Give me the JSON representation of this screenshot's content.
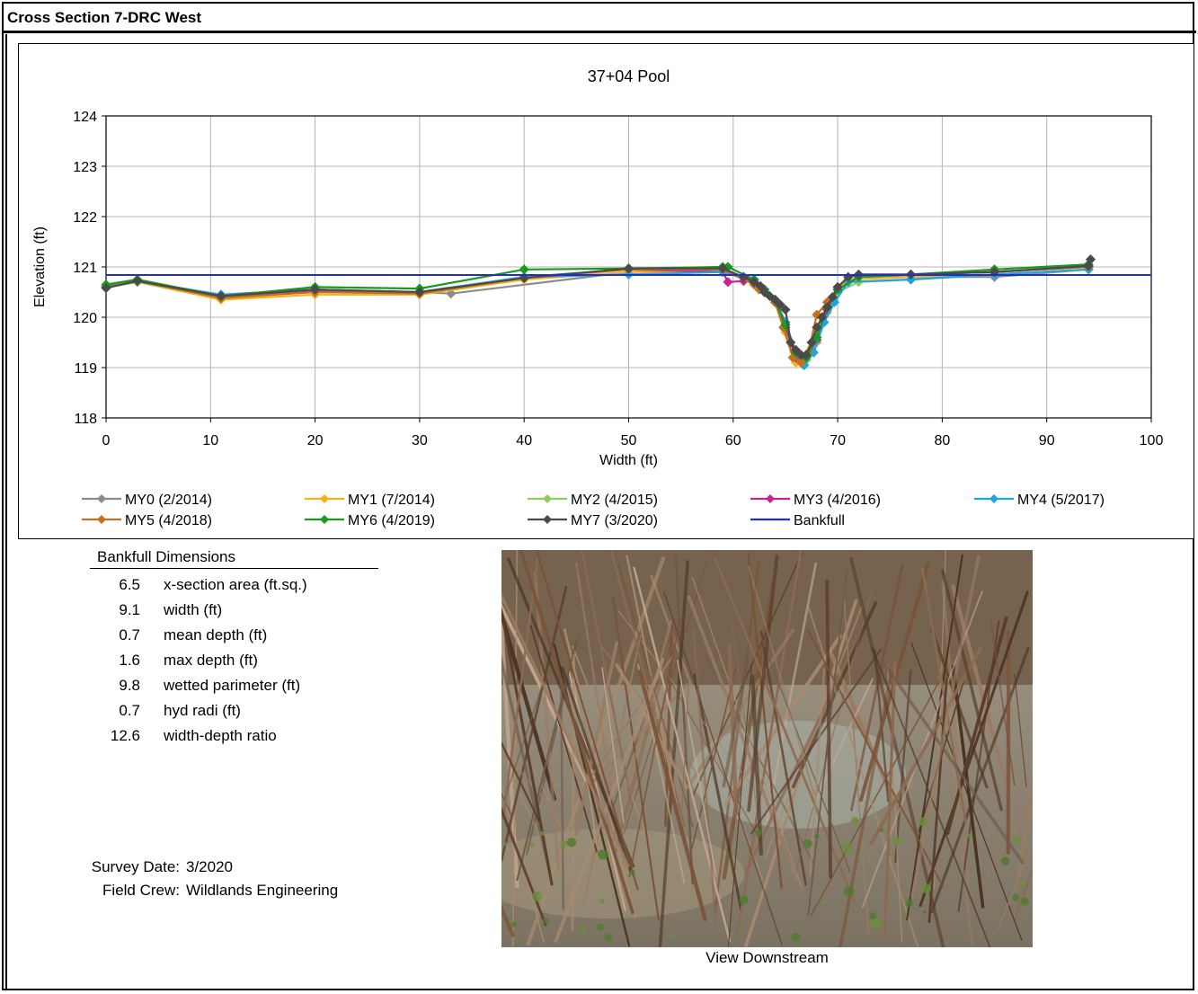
{
  "sheet_title": "Cross Section  7-DRC West",
  "chart_data": {
    "type": "line",
    "title": "37+04 Pool",
    "xlabel": "Width (ft)",
    "ylabel": "Elevation (ft)",
    "xlim": [
      0,
      100
    ],
    "ylim": [
      118,
      124
    ],
    "xticks": [
      0,
      10,
      20,
      30,
      40,
      50,
      60,
      70,
      80,
      90,
      100
    ],
    "yticks": [
      118,
      119,
      120,
      121,
      122,
      123,
      124
    ],
    "grid": true,
    "legend_position": "bottom",
    "bankfull": {
      "name": "Bankfull",
      "y": 120.84,
      "color": "#1f2ecc"
    },
    "series": [
      {
        "name": "MY0 (2/2014)",
        "color": "#8c8c8c",
        "points": [
          [
            0,
            120.6
          ],
          [
            3,
            120.7
          ],
          [
            11,
            120.45
          ],
          [
            20,
            120.55
          ],
          [
            30,
            120.5
          ],
          [
            33,
            120.47
          ],
          [
            50,
            120.9
          ],
          [
            59,
            120.95
          ],
          [
            62,
            120.7
          ],
          [
            63,
            120.55
          ],
          [
            64,
            120.35
          ],
          [
            65,
            119.9
          ],
          [
            66,
            119.3
          ],
          [
            67,
            119.25
          ],
          [
            68,
            119.6
          ],
          [
            69,
            120.2
          ],
          [
            70,
            120.6
          ],
          [
            72,
            120.8
          ],
          [
            77,
            120.8
          ],
          [
            85,
            120.8
          ],
          [
            94,
            120.95
          ]
        ]
      },
      {
        "name": "MY1 (7/2014)",
        "color": "#f5b21a",
        "points": [
          [
            0,
            120.6
          ],
          [
            3,
            120.7
          ],
          [
            11,
            120.35
          ],
          [
            20,
            120.45
          ],
          [
            30,
            120.45
          ],
          [
            40,
            120.75
          ],
          [
            50,
            120.9
          ],
          [
            59,
            120.9
          ],
          [
            62,
            120.7
          ],
          [
            63,
            120.55
          ],
          [
            64,
            120.3
          ],
          [
            65,
            119.7
          ],
          [
            66,
            119.1
          ],
          [
            66.7,
            119.05
          ],
          [
            67.5,
            119.4
          ],
          [
            68.5,
            120.0
          ],
          [
            69.5,
            120.4
          ],
          [
            71,
            120.75
          ],
          [
            77,
            120.8
          ],
          [
            85,
            120.85
          ],
          [
            94,
            120.95
          ]
        ]
      },
      {
        "name": "MY2 (4/2015)",
        "color": "#8fce5a",
        "points": [
          [
            0,
            120.6
          ],
          [
            3,
            120.7
          ],
          [
            11,
            120.4
          ],
          [
            20,
            120.5
          ],
          [
            30,
            120.48
          ],
          [
            40,
            120.78
          ],
          [
            50,
            120.95
          ],
          [
            59,
            120.92
          ],
          [
            62,
            120.7
          ],
          [
            63,
            120.5
          ],
          [
            64,
            120.3
          ],
          [
            65,
            119.75
          ],
          [
            66,
            119.2
          ],
          [
            67,
            119.15
          ],
          [
            68,
            119.5
          ],
          [
            69,
            120.1
          ],
          [
            70,
            120.5
          ],
          [
            72,
            120.7
          ],
          [
            77,
            120.75
          ],
          [
            85,
            120.85
          ],
          [
            94,
            120.95
          ]
        ]
      },
      {
        "name": "MY3 (4/2016)",
        "color": "#c7258a",
        "points": [
          [
            0,
            120.6
          ],
          [
            3,
            120.72
          ],
          [
            11,
            120.42
          ],
          [
            20,
            120.52
          ],
          [
            30,
            120.5
          ],
          [
            40,
            120.8
          ],
          [
            50,
            120.95
          ],
          [
            59,
            120.9
          ],
          [
            59.5,
            120.7
          ],
          [
            61,
            120.72
          ],
          [
            62,
            120.7
          ],
          [
            63,
            120.5
          ],
          [
            64,
            120.3
          ],
          [
            65,
            119.8
          ],
          [
            66,
            119.2
          ],
          [
            67,
            119.2
          ],
          [
            68,
            119.55
          ],
          [
            69,
            120.15
          ],
          [
            70,
            120.55
          ],
          [
            72,
            120.8
          ],
          [
            77,
            120.85
          ],
          [
            85,
            120.9
          ],
          [
            94,
            121.0
          ]
        ]
      },
      {
        "name": "MY4 (5/2017)",
        "color": "#1ca5e3",
        "points": [
          [
            0,
            120.62
          ],
          [
            3,
            120.72
          ],
          [
            11,
            120.45
          ],
          [
            20,
            120.55
          ],
          [
            30,
            120.5
          ],
          [
            40,
            120.8
          ],
          [
            50,
            120.85
          ],
          [
            59,
            120.9
          ],
          [
            62,
            120.75
          ],
          [
            63,
            120.55
          ],
          [
            64,
            120.35
          ],
          [
            65,
            119.9
          ],
          [
            66,
            119.3
          ],
          [
            66.8,
            119.05
          ],
          [
            67.7,
            119.3
          ],
          [
            68.7,
            119.9
          ],
          [
            69.7,
            120.3
          ],
          [
            71,
            120.7
          ],
          [
            77,
            120.75
          ],
          [
            85,
            120.85
          ],
          [
            94,
            120.95
          ]
        ]
      },
      {
        "name": "MY5 (4/2018)",
        "color": "#c6701b",
        "points": [
          [
            0,
            120.6
          ],
          [
            3,
            120.72
          ],
          [
            11,
            120.38
          ],
          [
            20,
            120.5
          ],
          [
            30,
            120.47
          ],
          [
            40,
            120.78
          ],
          [
            50,
            120.95
          ],
          [
            59,
            120.95
          ],
          [
            62,
            120.65
          ],
          [
            62.5,
            120.55
          ],
          [
            64,
            120.3
          ],
          [
            64.8,
            119.8
          ],
          [
            65.7,
            119.2
          ],
          [
            66.5,
            119.1
          ],
          [
            67.2,
            119.3
          ],
          [
            68,
            120.05
          ],
          [
            69,
            120.3
          ],
          [
            70,
            120.55
          ],
          [
            72,
            120.8
          ],
          [
            77,
            120.85
          ],
          [
            85,
            120.9
          ],
          [
            94,
            121.0
          ]
        ]
      },
      {
        "name": "MY6 (4/2019)",
        "color": "#179a1f",
        "points": [
          [
            0,
            120.65
          ],
          [
            3,
            120.75
          ],
          [
            11,
            120.42
          ],
          [
            20,
            120.6
          ],
          [
            30,
            120.57
          ],
          [
            40,
            120.95
          ],
          [
            50,
            120.97
          ],
          [
            59,
            121.0
          ],
          [
            59.5,
            121.0
          ],
          [
            62,
            120.75
          ],
          [
            63,
            120.55
          ],
          [
            64,
            120.35
          ],
          [
            65,
            119.85
          ],
          [
            66,
            119.3
          ],
          [
            67,
            119.2
          ],
          [
            68,
            119.6
          ],
          [
            69,
            120.2
          ],
          [
            70,
            120.55
          ],
          [
            72,
            120.8
          ],
          [
            77,
            120.85
          ],
          [
            85,
            120.95
          ],
          [
            94,
            121.05
          ]
        ]
      },
      {
        "name": "MY7 (3/2020)",
        "color": "#4a4a4a",
        "points": [
          [
            0,
            120.58
          ],
          [
            3,
            120.72
          ],
          [
            11,
            120.42
          ],
          [
            20,
            120.55
          ],
          [
            30,
            120.5
          ],
          [
            40,
            120.78
          ],
          [
            50,
            120.97
          ],
          [
            59,
            120.97
          ],
          [
            61,
            120.8
          ],
          [
            62,
            120.7
          ],
          [
            62.6,
            120.62
          ],
          [
            63,
            120.5
          ],
          [
            63.5,
            120.42
          ],
          [
            64,
            120.35
          ],
          [
            64.5,
            120.25
          ],
          [
            65,
            120.15
          ],
          [
            65.5,
            119.5
          ],
          [
            66,
            119.35
          ],
          [
            66.5,
            119.25
          ],
          [
            67,
            119.25
          ],
          [
            67.5,
            119.5
          ],
          [
            68,
            119.8
          ],
          [
            68.5,
            120.0
          ],
          [
            69,
            120.2
          ],
          [
            69.5,
            120.4
          ],
          [
            70,
            120.6
          ],
          [
            71,
            120.8
          ],
          [
            72,
            120.85
          ],
          [
            77,
            120.85
          ],
          [
            85,
            120.9
          ],
          [
            94,
            121.02
          ],
          [
            94.2,
            121.15
          ]
        ]
      }
    ]
  },
  "bankfull_dimensions": {
    "heading": "Bankfull Dimensions",
    "rows": [
      {
        "value": "6.5",
        "label": "x-section area (ft.sq.)"
      },
      {
        "value": "9.1",
        "label": "width (ft)"
      },
      {
        "value": "0.7",
        "label": "mean depth (ft)"
      },
      {
        "value": "1.6",
        "label": "max depth (ft)"
      },
      {
        "value": "9.8",
        "label": "wetted parimeter (ft)"
      },
      {
        "value": "0.7",
        "label": "hyd radi (ft)"
      },
      {
        "value": "12.6",
        "label": "width-depth ratio"
      }
    ]
  },
  "survey": {
    "date_label": "Survey Date:",
    "date_value": "3/2020",
    "crew_label": "Field Crew:",
    "crew_value": "Wildlands Engineering"
  },
  "photo": {
    "caption": "View Downstream"
  }
}
